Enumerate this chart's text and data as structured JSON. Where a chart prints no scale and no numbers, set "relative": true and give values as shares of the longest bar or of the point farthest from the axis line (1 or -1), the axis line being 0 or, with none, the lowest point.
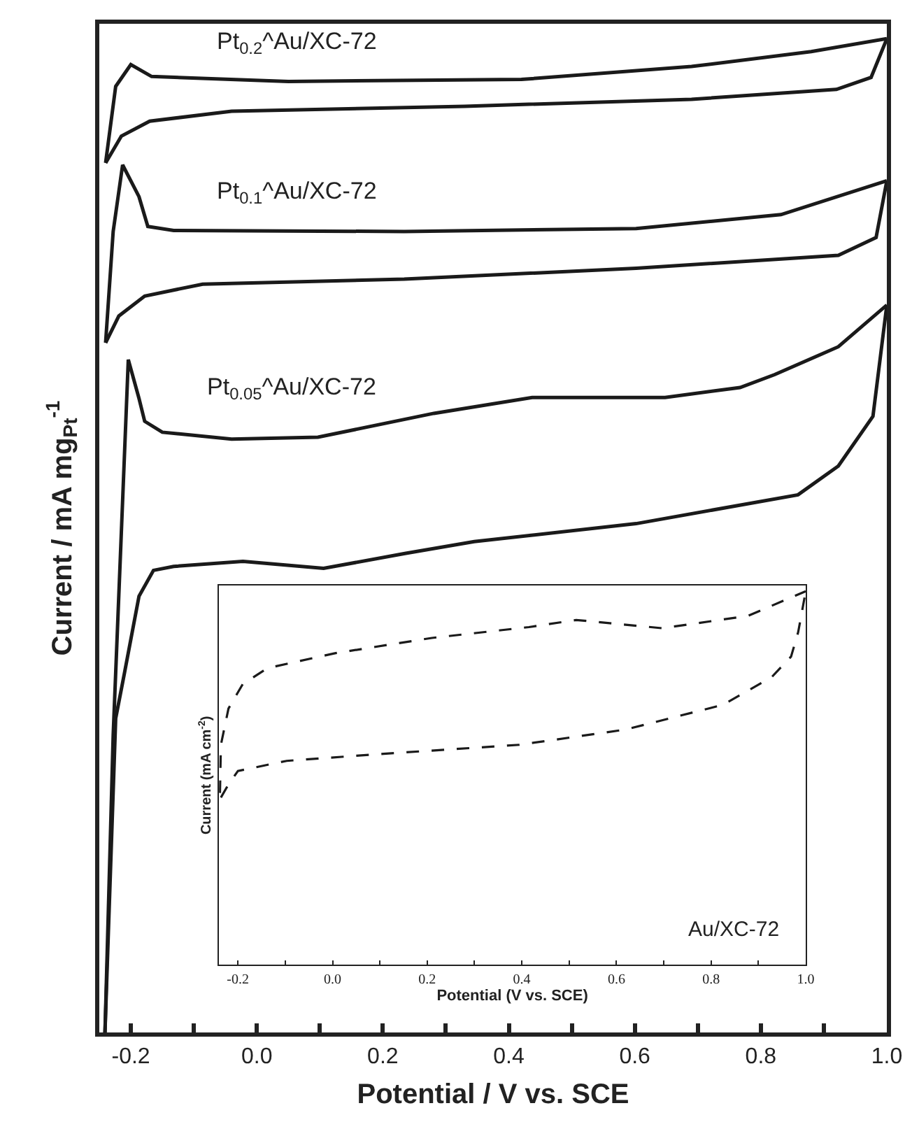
{
  "chart_data": [
    {
      "type": "line",
      "relative": true,
      "xlabel": "Potential / V vs. SCE",
      "ylabel": "Current / mA mg$_{Pt}$$^{-1}$",
      "xlim": [
        -0.25,
        1.0
      ],
      "xticks": [
        -0.2,
        {
          "value": -0.1,
          "label": null
        },
        {
          "value": 0,
          "label": "0.0"
        },
        {
          "value": 0.1,
          "label": null
        },
        0.2,
        {
          "value": 0.3,
          "label": null
        },
        0.4,
        {
          "value": 0.5,
          "label": null
        },
        0.6,
        {
          "value": 0.7,
          "label": null
        },
        0.8,
        {
          "value": 0.9,
          "label": null
        },
        {
          "value": 1,
          "label": "1.0"
        }
      ],
      "line_style": "solid",
      "series": [
        {
          "name": "Pt$_{0.2}$^Au/XC-72",
          "color": "#1a1a1a",
          "x": [
            -0.24,
            -0.224,
            -0.2,
            -0.167,
            0.05,
            0.42,
            0.69,
            0.88,
            1.0
          ],
          "values": [
            0.875,
            0.952,
            0.974,
            0.962,
            0.957,
            0.959,
            0.972,
            0.987,
            1.0
          ]
        },
        {
          "color": "#1a1a1a",
          "x": [
            -0.24,
            -0.215,
            -0.17,
            -0.04,
            0.33,
            0.69,
            0.92,
            0.975,
            1.0
          ],
          "values": [
            0.875,
            0.902,
            0.917,
            0.927,
            0.932,
            0.939,
            0.949,
            0.961,
            1.0
          ]
        },
        {
          "name": "Pt$_{0.1}$^Au/XC-72",
          "color": "#1a1a1a",
          "x": [
            -0.24,
            -0.228,
            -0.213,
            -0.187,
            -0.173,
            -0.132,
            0.234,
            0.602,
            0.832,
            1.0
          ],
          "values": [
            0.694,
            0.806,
            0.873,
            0.841,
            0.811,
            0.807,
            0.806,
            0.809,
            0.823,
            0.857
          ]
        },
        {
          "color": "#1a1a1a",
          "x": [
            -0.24,
            -0.219,
            -0.178,
            -0.086,
            0.234,
            0.602,
            0.923,
            0.983,
            1.0
          ],
          "values": [
            0.694,
            0.721,
            0.741,
            0.753,
            0.758,
            0.769,
            0.782,
            0.8,
            0.857
          ]
        },
        {
          "name": "Pt$_{0.05}$^Au/XC-72",
          "color": "#1a1a1a",
          "x": [
            -0.241,
            -0.228,
            -0.204,
            -0.187,
            -0.178,
            -0.15,
            -0.04,
            0.097,
            0.281,
            0.437,
            0.648,
            0.767,
            0.822,
            0.923,
            1.0
          ],
          "values": [
            0.0,
            0.299,
            0.677,
            0.638,
            0.615,
            0.604,
            0.597,
            0.599,
            0.623,
            0.639,
            0.639,
            0.649,
            0.662,
            0.69,
            0.732
          ]
        },
        {
          "color": "#1a1a1a",
          "x": [
            -0.241,
            -0.234,
            -0.224,
            -0.21,
            -0.187,
            -0.164,
            -0.132,
            -0.022,
            0.106,
            0.235,
            0.345,
            0.602,
            0.859,
            0.923,
            0.978,
            1.0
          ],
          "values": [
            0.0,
            0.131,
            0.316,
            0.362,
            0.439,
            0.465,
            0.469,
            0.474,
            0.467,
            0.482,
            0.494,
            0.512,
            0.541,
            0.57,
            0.62,
            0.732
          ]
        }
      ]
    },
    {
      "type": "line",
      "relative": true,
      "xlabel": "Potential (V vs. SCE)",
      "ylabel": "Current (mA cm$^{-2}$)",
      "xlim": [
        -0.24,
        1.0
      ],
      "xticks": [
        -0.2,
        {
          "value": -0.1,
          "label": null
        },
        {
          "value": 0,
          "label": "0.0"
        },
        {
          "value": 0.1,
          "label": null
        },
        0.2,
        {
          "value": 0.3,
          "label": null
        },
        0.4,
        {
          "value": 0.5,
          "label": null
        },
        0.6,
        {
          "value": 0.7,
          "label": null
        },
        0.8,
        {
          "value": 0.9,
          "label": null
        },
        {
          "value": 1,
          "label": "1.0"
        }
      ],
      "line_style": "dashed",
      "series": [
        {
          "name": "Au/XC-72",
          "color": "#1a1a1a",
          "x": [
            -0.238,
            -0.236,
            -0.22,
            -0.19,
            -0.138,
            0.005,
            0.21,
            0.415,
            0.515,
            0.697,
            0.878,
            1.0
          ],
          "values": [
            0.46,
            0.589,
            0.686,
            0.751,
            0.794,
            0.834,
            0.875,
            0.904,
            0.923,
            0.901,
            0.934,
            1.0
          ]
        },
        {
          "color": "#1a1a1a",
          "x": [
            -0.236,
            -0.22,
            -0.2,
            -0.097,
            0.108,
            0.395,
            0.62,
            0.825,
            0.928,
            0.969,
            0.984,
            1.0
          ],
          "values": [
            0.448,
            0.483,
            0.519,
            0.546,
            0.565,
            0.589,
            0.63,
            0.696,
            0.77,
            0.825,
            0.89,
            1.0
          ]
        }
      ]
    }
  ]
}
